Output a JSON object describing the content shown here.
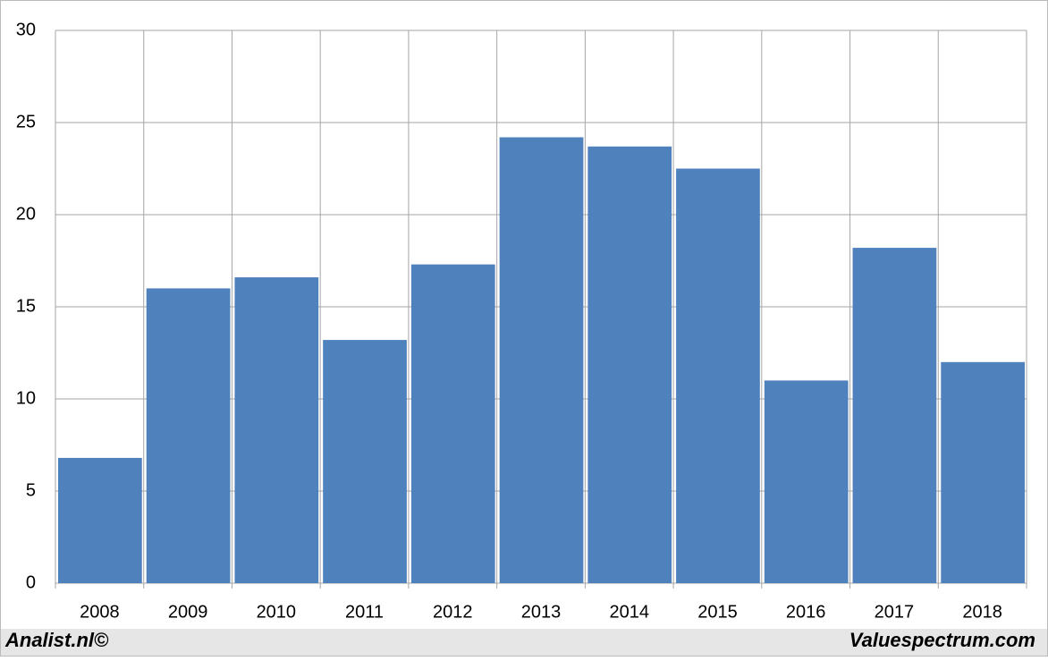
{
  "chart_data": {
    "type": "bar",
    "categories": [
      "2008",
      "2009",
      "2010",
      "2011",
      "2012",
      "2013",
      "2014",
      "2015",
      "2016",
      "2017",
      "2018"
    ],
    "values": [
      6.8,
      16.0,
      16.6,
      13.2,
      17.3,
      24.2,
      23.7,
      22.5,
      11.0,
      18.2,
      12.0
    ],
    "color": "#4f81bd",
    "ylim": [
      0,
      30
    ],
    "yticks": [
      0,
      5,
      10,
      15,
      20,
      25,
      30
    ],
    "grid": true,
    "footer_left": "Analist.nl©",
    "footer_right": "Valuespectrum.com"
  }
}
